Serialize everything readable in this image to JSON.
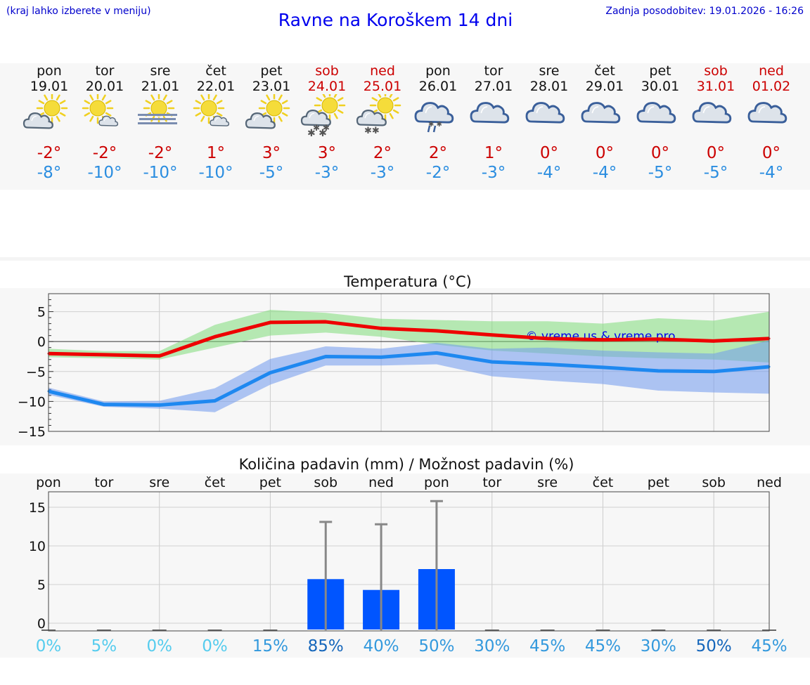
{
  "header": {
    "hint": "(kraj lahko izberete v meniju)",
    "title": "Ravne na Koroškem 14 dni",
    "updated": "Zadnja posodobitev: 19.01.2026 - 16:26"
  },
  "colors": {
    "max": "#cc0000",
    "min": "#2a8de0",
    "weekend": "#cc0000",
    "bar": "#0055ff"
  },
  "days": [
    {
      "name": "pon",
      "date": "19.01",
      "icon": "partly-cloudy-sun-icon",
      "max": "-2°",
      "min": "-8°",
      "weekend": false
    },
    {
      "name": "tor",
      "date": "20.01",
      "icon": "sun-small-cloud-icon",
      "max": "-2°",
      "min": "-10°",
      "weekend": false
    },
    {
      "name": "sre",
      "date": "21.01",
      "icon": "sun-fog-icon",
      "max": "-2°",
      "min": "-10°",
      "weekend": false
    },
    {
      "name": "čet",
      "date": "22.01",
      "icon": "sun-small-cloud-icon",
      "max": "1°",
      "min": "-10°",
      "weekend": false
    },
    {
      "name": "pet",
      "date": "23.01",
      "icon": "partly-cloudy-sun-icon",
      "max": "3°",
      "min": "-5°",
      "weekend": false
    },
    {
      "name": "sob",
      "date": "24.01",
      "icon": "sun-cloud-snow-icon",
      "max": "3°",
      "min": "-3°",
      "weekend": true
    },
    {
      "name": "ned",
      "date": "25.01",
      "icon": "sun-cloud-light-snow-icon",
      "max": "2°",
      "min": "-3°",
      "weekend": true
    },
    {
      "name": "pon",
      "date": "26.01",
      "icon": "cloud-sleet-icon",
      "max": "2°",
      "min": "-2°",
      "weekend": false
    },
    {
      "name": "tor",
      "date": "27.01",
      "icon": "cloudy-icon",
      "max": "1°",
      "min": "-3°",
      "weekend": false
    },
    {
      "name": "sre",
      "date": "28.01",
      "icon": "cloudy-icon",
      "max": "0°",
      "min": "-4°",
      "weekend": false
    },
    {
      "name": "čet",
      "date": "29.01",
      "icon": "cloudy-icon",
      "max": "0°",
      "min": "-4°",
      "weekend": false
    },
    {
      "name": "pet",
      "date": "30.01",
      "icon": "cloudy-icon",
      "max": "0°",
      "min": "-5°",
      "weekend": false
    },
    {
      "name": "sob",
      "date": "31.01",
      "icon": "cloudy-icon",
      "max": "0°",
      "min": "-5°",
      "weekend": true
    },
    {
      "name": "ned",
      "date": "01.02",
      "icon": "cloudy-icon",
      "max": "0°",
      "min": "-4°",
      "weekend": true
    }
  ],
  "chart_data": [
    {
      "type": "line",
      "title": "Temperatura (°C)",
      "watermark": "© vreme.us & vreme.pro",
      "ylim": [
        -15,
        8
      ],
      "yticks": [
        5,
        0,
        -5,
        -10,
        -15
      ],
      "ytick_labels": [
        "5",
        "0",
        "−5",
        "−10",
        "−15"
      ],
      "x": [
        0,
        1,
        2,
        3,
        4,
        5,
        6,
        7,
        8,
        9,
        10,
        11,
        12,
        13
      ],
      "series": [
        {
          "name": "max",
          "color": "#ee0000",
          "values": [
            -2.0,
            -2.2,
            -2.4,
            0.8,
            3.2,
            3.3,
            2.2,
            1.8,
            1.1,
            0.5,
            0.3,
            0.4,
            0.1,
            0.5
          ],
          "band_low": [
            -2.6,
            -2.8,
            -3.0,
            -1.0,
            1.0,
            1.5,
            0.8,
            -0.5,
            -1.5,
            -2.0,
            -2.5,
            -2.8,
            -3.0,
            -3.5
          ],
          "band_high": [
            -1.2,
            -1.6,
            -1.6,
            2.8,
            5.3,
            4.8,
            3.8,
            3.6,
            3.4,
            3.4,
            3.0,
            3.9,
            3.5,
            5.0
          ]
        },
        {
          "name": "min",
          "color": "#1e88f0",
          "values": [
            -8.3,
            -10.5,
            -10.6,
            -9.9,
            -5.2,
            -2.5,
            -2.6,
            -1.9,
            -3.4,
            -3.8,
            -4.3,
            -4.9,
            -5.0,
            -4.2
          ],
          "band_low": [
            -8.9,
            -10.9,
            -11.2,
            -11.8,
            -7.2,
            -4.0,
            -4.0,
            -3.8,
            -5.8,
            -6.5,
            -7.1,
            -8.2,
            -8.5,
            -8.7
          ],
          "band_high": [
            -7.7,
            -10.0,
            -9.9,
            -7.8,
            -2.9,
            -0.8,
            -1.2,
            -0.2,
            -1.2,
            -1.0,
            -1.5,
            -1.8,
            -2.0,
            0.2
          ]
        }
      ]
    },
    {
      "type": "bar",
      "title": "Količina padavin (mm) / Možnost padavin (%)",
      "ylim": [
        -1,
        17
      ],
      "yticks": [
        15,
        10,
        5,
        0
      ],
      "ytick_labels": [
        "15",
        "10",
        "5",
        "0"
      ],
      "categories": [
        "pon",
        "tor",
        "sre",
        "čet",
        "pet",
        "sob",
        "ned",
        "pon",
        "tor",
        "sre",
        "čet",
        "pet",
        "sob",
        "ned"
      ],
      "values": [
        0,
        0,
        0,
        0,
        0,
        5.7,
        4.3,
        7.0,
        0,
        0,
        0,
        0,
        0,
        0
      ],
      "error_max": [
        0,
        0,
        0,
        0,
        0,
        13.1,
        12.8,
        15.8,
        0,
        0,
        0,
        0,
        0,
        0
      ],
      "probability": [
        "0%",
        "5%",
        "0%",
        "0%",
        "15%",
        "85%",
        "40%",
        "50%",
        "30%",
        "45%",
        "45%",
        "30%",
        "50%",
        "45%"
      ],
      "probability_colors": [
        "#55ccee",
        "#55ccee",
        "#55ccee",
        "#55ccee",
        "#3399dd",
        "#1566bb",
        "#3399dd",
        "#3399dd",
        "#3399dd",
        "#3399dd",
        "#3399dd",
        "#3399dd",
        "#1566bb",
        "#3399dd"
      ]
    }
  ]
}
